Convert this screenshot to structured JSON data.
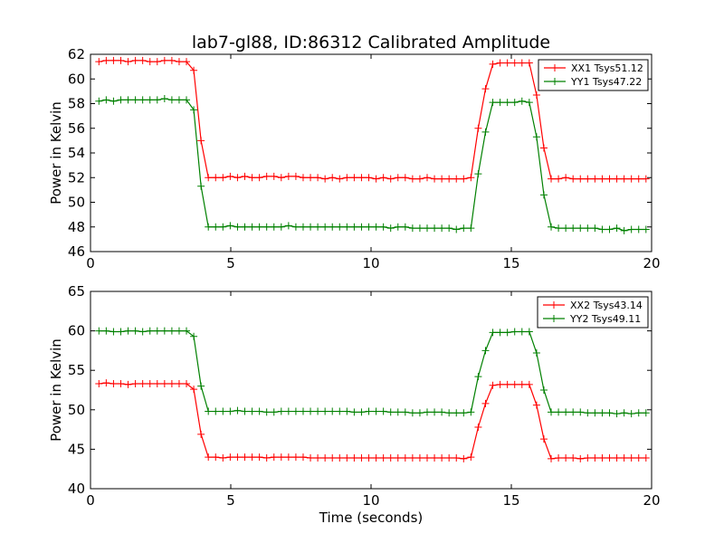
{
  "figure_title": "lab7-gl88, ID:86312 Calibrated Amplitude",
  "chart_data": [
    {
      "type": "line",
      "title": "lab7-gl88, ID:86312 Calibrated Amplitude",
      "xlabel": "",
      "ylabel": "Power in Kelvin",
      "xlim": [
        0,
        20
      ],
      "ylim": [
        46,
        62
      ],
      "xticks": [
        "0",
        "5",
        "10",
        "15",
        "20"
      ],
      "yticks": [
        "46",
        "48",
        "50",
        "52",
        "54",
        "56",
        "58",
        "60",
        "62"
      ],
      "legend_position": "top-right",
      "grid": false,
      "x": [
        0.3,
        0.56,
        0.82,
        1.08,
        1.34,
        1.6,
        1.86,
        2.12,
        2.38,
        2.64,
        2.9,
        3.16,
        3.42,
        3.68,
        3.94,
        4.2,
        4.46,
        4.72,
        4.98,
        5.24,
        5.5,
        5.76,
        6.02,
        6.28,
        6.54,
        6.8,
        7.06,
        7.32,
        7.58,
        7.84,
        8.1,
        8.36,
        8.62,
        8.88,
        9.14,
        9.4,
        9.66,
        9.92,
        10.18,
        10.44,
        10.7,
        10.96,
        11.22,
        11.48,
        11.74,
        12.0,
        12.26,
        12.52,
        12.78,
        13.04,
        13.3,
        13.56,
        13.82,
        14.08,
        14.34,
        14.6,
        14.86,
        15.12,
        15.38,
        15.64,
        15.9,
        16.16,
        16.42,
        16.68,
        16.94,
        17.2,
        17.46,
        17.72,
        17.98,
        18.24,
        18.5,
        18.76,
        19.02,
        19.28,
        19.54,
        19.8
      ],
      "series": [
        {
          "name": "XX1 Tsys51.12",
          "color": "#ff0000",
          "values": [
            61.4,
            61.5,
            61.5,
            61.5,
            61.4,
            61.5,
            61.5,
            61.4,
            61.4,
            61.5,
            61.5,
            61.4,
            61.4,
            60.7,
            55.0,
            52.0,
            52.0,
            52.0,
            52.1,
            52.0,
            52.1,
            52.0,
            52.0,
            52.1,
            52.1,
            52.0,
            52.1,
            52.1,
            52.0,
            52.0,
            52.0,
            51.9,
            52.0,
            51.9,
            52.0,
            52.0,
            52.0,
            52.0,
            51.9,
            52.0,
            51.9,
            52.0,
            52.0,
            51.9,
            51.9,
            52.0,
            51.9,
            51.9,
            51.9,
            51.9,
            51.9,
            52.0,
            56.0,
            59.2,
            61.2,
            61.3,
            61.3,
            61.3,
            61.3,
            61.3,
            58.7,
            54.4,
            51.9,
            51.9,
            52.0,
            51.9,
            51.9,
            51.9,
            51.9,
            51.9,
            51.9,
            51.9,
            51.9,
            51.9,
            51.9,
            51.9
          ]
        },
        {
          "name": "YY1 Tsys47.22",
          "color": "#008000",
          "values": [
            58.2,
            58.3,
            58.2,
            58.3,
            58.3,
            58.3,
            58.3,
            58.3,
            58.3,
            58.4,
            58.3,
            58.3,
            58.3,
            57.5,
            51.3,
            48.0,
            48.0,
            48.0,
            48.1,
            48.0,
            48.0,
            48.0,
            48.0,
            48.0,
            48.0,
            48.0,
            48.1,
            48.0,
            48.0,
            48.0,
            48.0,
            48.0,
            48.0,
            48.0,
            48.0,
            48.0,
            48.0,
            48.0,
            48.0,
            48.0,
            47.9,
            48.0,
            48.0,
            47.9,
            47.9,
            47.9,
            47.9,
            47.9,
            47.9,
            47.8,
            47.9,
            47.9,
            52.3,
            55.7,
            58.1,
            58.1,
            58.1,
            58.1,
            58.2,
            58.1,
            55.3,
            50.6,
            48.0,
            47.9,
            47.9,
            47.9,
            47.9,
            47.9,
            47.9,
            47.8,
            47.8,
            47.9,
            47.7,
            47.8,
            47.8,
            47.8
          ]
        }
      ]
    },
    {
      "type": "line",
      "title": "",
      "xlabel": "Time (seconds)",
      "ylabel": "Power in Kelvin",
      "xlim": [
        0,
        20
      ],
      "ylim": [
        40,
        65
      ],
      "xticks": [
        "0",
        "5",
        "10",
        "15",
        "20"
      ],
      "yticks": [
        "40",
        "45",
        "50",
        "55",
        "60",
        "65"
      ],
      "legend_position": "top-right",
      "grid": false,
      "x": [
        0.3,
        0.56,
        0.82,
        1.08,
        1.34,
        1.6,
        1.86,
        2.12,
        2.38,
        2.64,
        2.9,
        3.16,
        3.42,
        3.68,
        3.94,
        4.2,
        4.46,
        4.72,
        4.98,
        5.24,
        5.5,
        5.76,
        6.02,
        6.28,
        6.54,
        6.8,
        7.06,
        7.32,
        7.58,
        7.84,
        8.1,
        8.36,
        8.62,
        8.88,
        9.14,
        9.4,
        9.66,
        9.92,
        10.18,
        10.44,
        10.7,
        10.96,
        11.22,
        11.48,
        11.74,
        12.0,
        12.26,
        12.52,
        12.78,
        13.04,
        13.3,
        13.56,
        13.82,
        14.08,
        14.34,
        14.6,
        14.86,
        15.12,
        15.38,
        15.64,
        15.9,
        16.16,
        16.42,
        16.68,
        16.94,
        17.2,
        17.46,
        17.72,
        17.98,
        18.24,
        18.5,
        18.76,
        19.02,
        19.28,
        19.54,
        19.8
      ],
      "series": [
        {
          "name": "XX2 Tsys43.14",
          "color": "#ff0000",
          "values": [
            53.3,
            53.4,
            53.3,
            53.3,
            53.2,
            53.3,
            53.3,
            53.3,
            53.3,
            53.3,
            53.3,
            53.3,
            53.3,
            52.6,
            46.9,
            44.0,
            44.0,
            43.9,
            44.0,
            44.0,
            44.0,
            44.0,
            44.0,
            43.9,
            44.0,
            44.0,
            44.0,
            44.0,
            44.0,
            43.9,
            43.9,
            43.9,
            43.9,
            43.9,
            43.9,
            43.9,
            43.9,
            43.9,
            43.9,
            43.9,
            43.9,
            43.9,
            43.9,
            43.9,
            43.9,
            43.9,
            43.9,
            43.9,
            43.9,
            43.9,
            43.8,
            44.0,
            47.8,
            50.8,
            53.1,
            53.2,
            53.2,
            53.2,
            53.2,
            53.2,
            50.6,
            46.3,
            43.8,
            43.9,
            43.9,
            43.9,
            43.8,
            43.9,
            43.9,
            43.9,
            43.9,
            43.9,
            43.9,
            43.9,
            43.9,
            43.9
          ]
        },
        {
          "name": "YY2 Tsys49.11",
          "color": "#008000",
          "values": [
            60.0,
            60.0,
            59.9,
            59.9,
            60.0,
            60.0,
            59.9,
            60.0,
            60.0,
            60.0,
            60.0,
            60.0,
            60.0,
            59.3,
            53.0,
            49.8,
            49.8,
            49.8,
            49.8,
            49.9,
            49.8,
            49.8,
            49.8,
            49.7,
            49.7,
            49.8,
            49.8,
            49.8,
            49.8,
            49.8,
            49.8,
            49.8,
            49.8,
            49.8,
            49.8,
            49.7,
            49.7,
            49.8,
            49.8,
            49.8,
            49.7,
            49.7,
            49.7,
            49.6,
            49.6,
            49.7,
            49.7,
            49.7,
            49.6,
            49.6,
            49.6,
            49.7,
            54.2,
            57.5,
            59.8,
            59.8,
            59.8,
            59.9,
            59.9,
            59.9,
            57.2,
            52.5,
            49.7,
            49.7,
            49.7,
            49.7,
            49.7,
            49.6,
            49.6,
            49.6,
            49.6,
            49.5,
            49.6,
            49.5,
            49.6,
            49.6
          ]
        }
      ]
    }
  ]
}
